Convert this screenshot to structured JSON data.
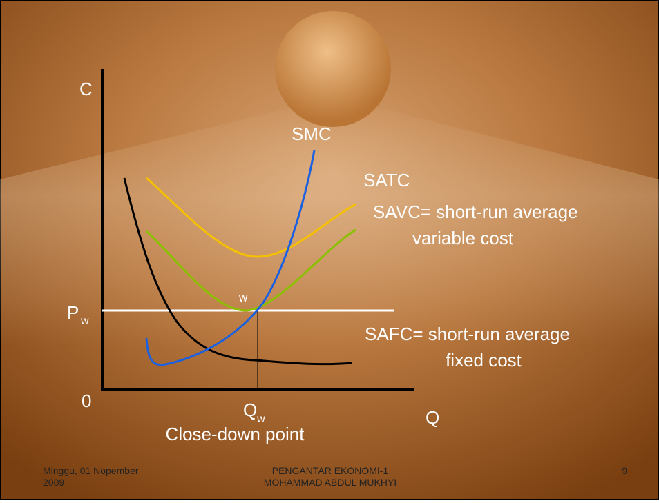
{
  "axes": {
    "y_label": "C",
    "x_label": "Q",
    "origin": "0"
  },
  "price_label": {
    "main": "P",
    "sub": "w"
  },
  "quantity_label": {
    "main": "Q",
    "sub": "w"
  },
  "point_label": "w",
  "caption": "Close-down point",
  "curves": {
    "smc": "SMC",
    "satc": "SATC",
    "savc": [
      "SAVC= short-run average",
      "variable cost"
    ],
    "safc": [
      "SAFC= short-run average",
      "fixed cost"
    ]
  },
  "footer": {
    "date": [
      "Minggu, 01 Nopember",
      "2009"
    ],
    "center": [
      "PENGANTAR EKONOMI-1",
      "MOHAMMAD ABDUL MUKHYI"
    ],
    "page": "9"
  }
}
